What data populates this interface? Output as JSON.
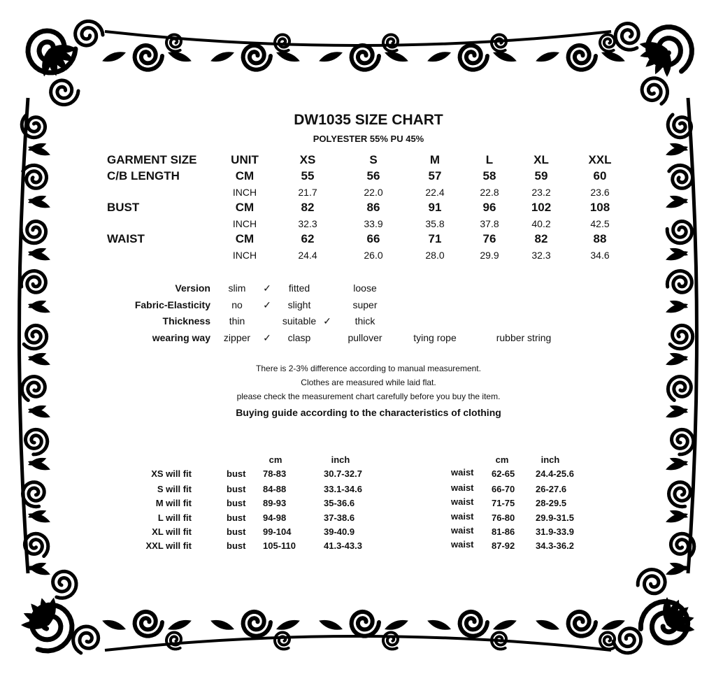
{
  "title": "DW1035 SIZE CHART",
  "material": "POLYESTER 55% PU 45%",
  "size_table": {
    "header": {
      "label": "GARMENT SIZE",
      "unit": "UNIT",
      "sizes": [
        "XS",
        "S",
        "M",
        "L",
        "XL",
        "XXL"
      ]
    },
    "rows": [
      {
        "label": "C/B LENGTH",
        "unit": "CM",
        "values": [
          "55",
          "56",
          "57",
          "58",
          "59",
          "60"
        ],
        "bold": true
      },
      {
        "label": "",
        "unit": "INCH",
        "values": [
          "21.7",
          "22.0",
          "22.4",
          "22.8",
          "23.2",
          "23.6"
        ],
        "bold": false
      },
      {
        "label": "BUST",
        "unit": "CM",
        "values": [
          "82",
          "86",
          "91",
          "96",
          "102",
          "108"
        ],
        "bold": true
      },
      {
        "label": "",
        "unit": "INCH",
        "values": [
          "32.3",
          "33.9",
          "35.8",
          "37.8",
          "40.2",
          "42.5"
        ],
        "bold": false
      },
      {
        "label": "WAIST",
        "unit": "CM",
        "values": [
          "62",
          "66",
          "71",
          "76",
          "82",
          "88"
        ],
        "bold": true
      },
      {
        "label": "",
        "unit": "INCH",
        "values": [
          "24.4",
          "26.0",
          "28.0",
          "29.9",
          "32.3",
          "34.6"
        ],
        "bold": false
      }
    ]
  },
  "features": [
    {
      "label": "Version",
      "o1": "slim",
      "o2": "fitted",
      "o3": "loose",
      "checked": "slim"
    },
    {
      "label": "Fabric-Elasticity",
      "o1": "no",
      "o2": "slight",
      "o3": "super",
      "checked": "no"
    },
    {
      "label": "Thickness",
      "o1": "thin",
      "o2": "suitable",
      "o3": "thick",
      "checked": "suitable"
    },
    {
      "label": "wearing way",
      "o1": "zipper",
      "o2": "clasp",
      "o3": "pullover",
      "o4": "tying rope",
      "o5": "rubber string",
      "checked": "zipper"
    }
  ],
  "check_mark": "✓",
  "notes": [
    "There is 2-3% difference according to manual measurement.",
    "Clothes are measured while laid flat.",
    "please check the measurement chart carefully before you buy the item."
  ],
  "guide_title": "Buying guide according to the characteristics of clothing",
  "guide": {
    "cm_header": "cm",
    "inch_header": "inch",
    "rows": [
      {
        "fit": "XS will  fit",
        "bust": "bust",
        "bust_cm": "78-83",
        "bust_inch": "30.7-32.7",
        "waist": "waist",
        "waist_cm": "62-65",
        "waist_inch": "24.4-25.6"
      },
      {
        "fit": "S will  fit",
        "bust": "bust",
        "bust_cm": "84-88",
        "bust_inch": "33.1-34.6",
        "waist": "waist",
        "waist_cm": "66-70",
        "waist_inch": "26-27.6"
      },
      {
        "fit": "M will fit",
        "bust": "bust",
        "bust_cm": "89-93",
        "bust_inch": "35-36.6",
        "waist": "waist",
        "waist_cm": "71-75",
        "waist_inch": "28-29.5"
      },
      {
        "fit": "L will fit",
        "bust": "bust",
        "bust_cm": "94-98",
        "bust_inch": "37-38.6",
        "waist": "waist",
        "waist_cm": "76-80",
        "waist_inch": "29.9-31.5"
      },
      {
        "fit": "XL will fit",
        "bust": "bust",
        "bust_cm": "99-104",
        "bust_inch": "39-40.9",
        "waist": "waist",
        "waist_cm": "81-86",
        "waist_inch": "31.9-33.9"
      },
      {
        "fit": "XXL will fit",
        "bust": "bust",
        "bust_cm": "105-110",
        "bust_inch": "41.3-43.3",
        "waist": "waist",
        "waist_cm": "87-92",
        "waist_inch": "34.3-36.2"
      }
    ]
  },
  "frame_color": "#000000"
}
